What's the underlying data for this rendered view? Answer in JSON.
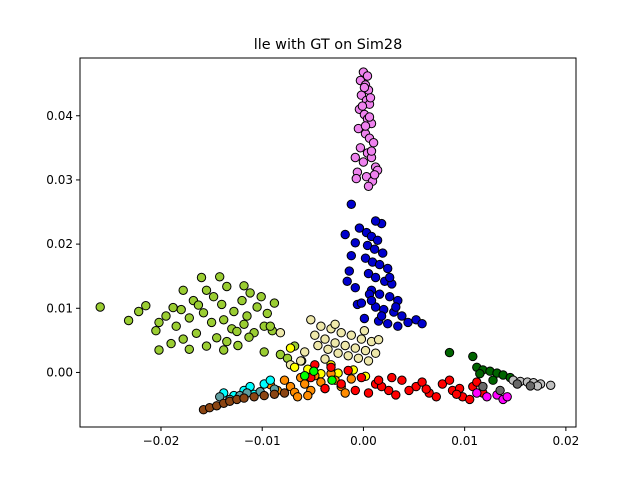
{
  "chart_data": {
    "type": "scatter",
    "title": "lle with GT on Sim28",
    "xlabel": "",
    "ylabel": "",
    "xlim": [
      -0.028,
      0.021
    ],
    "ylim": [
      -0.0085,
      0.049
    ],
    "x_ticks": [
      -0.02,
      -0.01,
      0.0,
      0.01,
      0.02
    ],
    "x_tick_labels": [
      "−0.02",
      "−0.01",
      "0.00",
      "0.01",
      "0.02"
    ],
    "y_ticks": [
      0.0,
      0.01,
      0.02,
      0.03,
      0.04
    ],
    "y_tick_labels": [
      "0.00",
      "0.01",
      "0.02",
      "0.03",
      "0.04"
    ],
    "grid": false,
    "legend": "none",
    "marker_edge_color": "#000000",
    "series": [
      {
        "color": "#9acd32",
        "points": [
          [
            -0.026,
            0.0102
          ],
          [
            -0.0232,
            0.0081
          ],
          [
            -0.0222,
            0.0095
          ],
          [
            -0.0215,
            0.0104
          ],
          [
            -0.0205,
            0.0065
          ],
          [
            -0.0202,
            0.0078
          ],
          [
            -0.0195,
            0.0088
          ],
          [
            -0.0188,
            0.0101
          ],
          [
            -0.0185,
            0.0072
          ],
          [
            -0.018,
            0.0098
          ],
          [
            -0.0178,
            0.0052
          ],
          [
            -0.0172,
            0.0085
          ],
          [
            -0.0168,
            0.0112
          ],
          [
            -0.0165,
            0.0061
          ],
          [
            -0.016,
            0.0148
          ],
          [
            -0.0158,
            0.0093
          ],
          [
            -0.0155,
            0.0128
          ],
          [
            -0.015,
            0.0078
          ],
          [
            -0.0148,
            0.0118
          ],
          [
            -0.0145,
            0.0054
          ],
          [
            -0.014,
            0.0106
          ],
          [
            -0.0138,
            0.0082
          ],
          [
            -0.0135,
            0.0134
          ],
          [
            -0.013,
            0.0068
          ],
          [
            -0.0128,
            0.0095
          ],
          [
            -0.0124,
            0.0042
          ],
          [
            -0.012,
            0.0112
          ],
          [
            -0.0118,
            0.0075
          ],
          [
            -0.0115,
            0.0088
          ],
          [
            -0.0112,
            0.0124
          ],
          [
            -0.0108,
            0.0062
          ],
          [
            -0.0105,
            0.0102
          ],
          [
            -0.0101,
            0.0118
          ],
          [
            -0.0098,
            0.0072
          ],
          [
            -0.0095,
            0.0092
          ],
          [
            -0.009,
            0.0065
          ],
          [
            -0.0088,
            0.0108
          ],
          [
            -0.0172,
            0.0036
          ],
          [
            -0.0155,
            0.0041
          ],
          [
            -0.0138,
            0.0035
          ],
          [
            -0.019,
            0.0045
          ],
          [
            -0.0098,
            0.0032
          ],
          [
            -0.0082,
            0.0028
          ],
          [
            -0.0075,
            0.0022
          ],
          [
            -0.0068,
            0.0041
          ],
          [
            -0.0061,
            0.0018
          ],
          [
            -0.0118,
            0.0135
          ],
          [
            -0.0142,
            0.0149
          ],
          [
            -0.0202,
            0.0035
          ],
          [
            -0.0178,
            0.0128
          ],
          [
            -0.0163,
            0.0105
          ],
          [
            -0.0135,
            0.0048
          ],
          [
            -0.0113,
            0.0055
          ],
          [
            -0.0092,
            0.0072
          ],
          [
            -0.0125,
            0.0064
          ]
        ]
      },
      {
        "color": "#ee82ee",
        "points": [
          [
            0.0,
            0.0468
          ],
          [
            0.0004,
            0.0462
          ],
          [
            -0.0003,
            0.0455
          ],
          [
            0.0002,
            0.0448
          ],
          [
            0.0005,
            0.044
          ],
          [
            -0.0002,
            0.0432
          ],
          [
            0.0003,
            0.0424
          ],
          [
            0.0006,
            0.0418
          ],
          [
            -0.0004,
            0.041
          ],
          [
            0.0001,
            0.0402
          ],
          [
            0.0004,
            0.0395
          ],
          [
            0.0008,
            0.0388
          ],
          [
            -0.0005,
            0.038
          ],
          [
            0.0002,
            0.0372
          ],
          [
            0.0006,
            0.0365
          ],
          [
            0.001,
            0.0358
          ],
          [
            -0.0003,
            0.035
          ],
          [
            0.0004,
            0.0342
          ],
          [
            0.0008,
            0.0335
          ],
          [
            0.0,
            0.0328
          ],
          [
            0.0012,
            0.032
          ],
          [
            -0.0006,
            0.0312
          ],
          [
            0.0003,
            0.0305
          ],
          [
            0.0009,
            0.0298
          ],
          [
            0.0005,
            0.029
          ],
          [
            -0.0007,
            0.0302
          ],
          [
            0.0014,
            0.0315
          ],
          [
            0.0002,
            0.0384
          ],
          [
            0.0006,
            0.0398
          ],
          [
            -0.0001,
            0.0415
          ],
          [
            0.0007,
            0.0428
          ],
          [
            0.0001,
            0.0444
          ],
          [
            0.0008,
            0.0345
          ],
          [
            -0.0008,
            0.0335
          ],
          [
            0.0011,
            0.0308
          ]
        ]
      },
      {
        "color": "#0000cd",
        "points": [
          [
            -0.0012,
            0.0262
          ],
          [
            0.0018,
            0.0232
          ],
          [
            -0.0018,
            0.0215
          ],
          [
            -0.0004,
            0.0225
          ],
          [
            0.0003,
            0.0218
          ],
          [
            0.0008,
            0.0212
          ],
          [
            0.0014,
            0.0206
          ],
          [
            -0.0008,
            0.0202
          ],
          [
            0.0004,
            0.0198
          ],
          [
            0.0011,
            0.0192
          ],
          [
            0.0019,
            0.0186
          ],
          [
            -0.0012,
            0.0182
          ],
          [
            0.0002,
            0.0178
          ],
          [
            0.0009,
            0.0172
          ],
          [
            0.0016,
            0.0168
          ],
          [
            0.0024,
            0.0162
          ],
          [
            -0.0014,
            0.0158
          ],
          [
            0.0005,
            0.0154
          ],
          [
            0.0012,
            0.0148
          ],
          [
            0.0021,
            0.0142
          ],
          [
            0.0028,
            0.0138
          ],
          [
            -0.0008,
            0.0132
          ],
          [
            0.0008,
            0.0128
          ],
          [
            0.0016,
            0.0122
          ],
          [
            0.0026,
            0.0118
          ],
          [
            0.0034,
            0.0112
          ],
          [
            -0.0006,
            0.0106
          ],
          [
            0.0012,
            0.0102
          ],
          [
            0.002,
            0.0098
          ],
          [
            0.003,
            0.0094
          ],
          [
            0.0038,
            0.0088
          ],
          [
            0.0001,
            0.0084
          ],
          [
            0.0015,
            0.008
          ],
          [
            0.0024,
            0.0076
          ],
          [
            0.0034,
            0.0072
          ],
          [
            0.0044,
            0.0078
          ],
          [
            0.0052,
            0.0082
          ],
          [
            0.0058,
            0.0076
          ],
          [
            -0.0002,
            0.0108
          ],
          [
            0.0006,
            0.0122
          ],
          [
            -0.0016,
            0.0142
          ],
          [
            0.0026,
            0.0148
          ],
          [
            0.0008,
            0.0112
          ],
          [
            0.0018,
            0.0088
          ],
          [
            0.0032,
            0.0102
          ],
          [
            0.0012,
            0.0236
          ]
        ]
      },
      {
        "color": "#eee8aa",
        "points": [
          [
            -0.0052,
            0.0082
          ],
          [
            -0.0042,
            0.0072
          ],
          [
            -0.0032,
            0.0068
          ],
          [
            -0.0022,
            0.0062
          ],
          [
            -0.0012,
            0.0058
          ],
          [
            -0.0002,
            0.0052
          ],
          [
            0.0008,
            0.0048
          ],
          [
            -0.0048,
            0.0058
          ],
          [
            -0.0038,
            0.0052
          ],
          [
            -0.0028,
            0.0046
          ],
          [
            -0.0018,
            0.0042
          ],
          [
            -0.0008,
            0.0038
          ],
          [
            0.0002,
            0.0034
          ],
          [
            0.0012,
            0.003
          ],
          [
            -0.0045,
            0.0042
          ],
          [
            -0.0035,
            0.0036
          ],
          [
            -0.0025,
            0.003
          ],
          [
            -0.0015,
            0.0026
          ],
          [
            -0.0005,
            0.0022
          ],
          [
            0.0005,
            0.0018
          ],
          [
            -0.0058,
            0.0032
          ],
          [
            -0.0062,
            0.0018
          ],
          [
            -0.0038,
            0.0021
          ],
          [
            -0.0072,
            0.0012
          ],
          [
            -0.0082,
            0.0062
          ],
          [
            0.0015,
            0.0051
          ],
          [
            -0.0028,
            0.0075
          ],
          [
            0.0001,
            0.0065
          ]
        ]
      },
      {
        "color": "#ffff00",
        "points": [
          [
            -0.0072,
            0.0038
          ],
          [
            -0.0055,
            0.0005
          ],
          [
            -0.0042,
            -0.0002
          ],
          [
            -0.0025,
            -0.0001
          ],
          [
            -0.001,
            0.0004
          ],
          [
            0.0002,
            -0.0006
          ],
          [
            -0.0068,
            0.0008
          ],
          [
            -0.0032,
            0.0012
          ]
        ]
      },
      {
        "color": "#ff8c00",
        "points": [
          [
            -0.0078,
            -0.0012
          ],
          [
            -0.0072,
            -0.0022
          ],
          [
            -0.0068,
            -0.0031
          ],
          [
            -0.0062,
            -0.0008
          ],
          [
            -0.0058,
            -0.0018
          ],
          [
            -0.0052,
            -0.0028
          ],
          [
            -0.0048,
            -0.0005
          ],
          [
            -0.0042,
            -0.0015
          ],
          [
            -0.0038,
            -0.0025
          ],
          [
            -0.0032,
            -0.0002
          ],
          [
            -0.0028,
            -0.0012
          ],
          [
            -0.0022,
            -0.0022
          ],
          [
            -0.0018,
            -0.0032
          ],
          [
            -0.0012,
            -0.001
          ],
          [
            -0.0065,
            -0.0038
          ],
          [
            -0.0085,
            -0.0028
          ],
          [
            -0.0092,
            -0.0019
          ],
          [
            -0.0055,
            -0.0036
          ]
        ]
      },
      {
        "color": "#ff0000",
        "points": [
          [
            -0.0048,
            0.0012
          ],
          [
            -0.0032,
            0.0008
          ],
          [
            -0.0015,
            0.0003
          ],
          [
            -0.0002,
            -0.0008
          ],
          [
            0.0012,
            -0.0018
          ],
          [
            0.0025,
            -0.0028
          ],
          [
            0.0038,
            -0.0012
          ],
          [
            0.0052,
            -0.0022
          ],
          [
            0.0065,
            -0.0032
          ],
          [
            0.0078,
            -0.0018
          ],
          [
            0.0088,
            -0.0028
          ],
          [
            0.0098,
            -0.0038
          ],
          [
            0.0108,
            -0.0022
          ],
          [
            0.0118,
            -0.0032
          ],
          [
            -0.0022,
            -0.0018
          ],
          [
            -0.0008,
            -0.0028
          ],
          [
            0.0005,
            -0.0032
          ],
          [
            0.0018,
            -0.0022
          ],
          [
            0.0032,
            -0.0035
          ],
          [
            0.0045,
            -0.0028
          ],
          [
            0.0058,
            -0.0015
          ],
          [
            0.0072,
            -0.0038
          ],
          [
            0.0085,
            -0.0012
          ],
          [
            0.0095,
            -0.0025
          ],
          [
            0.0105,
            -0.0042
          ],
          [
            0.0112,
            -0.0015
          ],
          [
            -0.0038,
            -0.0025
          ],
          [
            -0.0052,
            -0.0008
          ],
          [
            0.0028,
            -0.0008
          ],
          [
            0.0062,
            -0.0026
          ],
          [
            0.0092,
            -0.0034
          ],
          [
            0.0015,
            -0.0012
          ]
        ]
      },
      {
        "color": "#00ff00",
        "points": [
          [
            -0.0058,
            -0.0005
          ],
          [
            -0.0049,
            0.0002
          ],
          [
            -0.0031,
            -0.0012
          ]
        ]
      },
      {
        "color": "#00ffff",
        "points": [
          [
            -0.0138,
            -0.0032
          ],
          [
            -0.0128,
            -0.0036
          ],
          [
            -0.0118,
            -0.0028
          ],
          [
            -0.0108,
            -0.0034
          ],
          [
            -0.0098,
            -0.0018
          ],
          [
            -0.0092,
            -0.0012
          ],
          [
            -0.0112,
            -0.0022
          ]
        ]
      },
      {
        "color": "#5f9ea0",
        "points": [
          [
            -0.0142,
            -0.0038
          ],
          [
            -0.0132,
            -0.0042
          ],
          [
            -0.0122,
            -0.0036
          ],
          [
            -0.0115,
            -0.0032
          ],
          [
            -0.0102,
            -0.003
          ],
          [
            -0.0088,
            -0.0026
          ]
        ]
      },
      {
        "color": "#8b4513",
        "points": [
          [
            -0.0158,
            -0.0058
          ],
          [
            -0.0152,
            -0.0055
          ],
          [
            -0.0145,
            -0.0052
          ],
          [
            -0.0138,
            -0.0048
          ],
          [
            -0.0132,
            -0.0045
          ],
          [
            -0.0125,
            -0.0042
          ],
          [
            -0.0118,
            -0.004
          ],
          [
            -0.0108,
            -0.0038
          ],
          [
            -0.0098,
            -0.0036
          ],
          [
            -0.0088,
            -0.0034
          ],
          [
            -0.0078,
            -0.0032
          ]
        ]
      },
      {
        "color": "#ff00ff",
        "points": [
          [
            0.0112,
            -0.0032
          ],
          [
            0.0122,
            -0.0038
          ],
          [
            0.0132,
            -0.0035
          ],
          [
            0.0138,
            -0.0042
          ],
          [
            0.0142,
            -0.0038
          ]
        ]
      },
      {
        "color": "#006400",
        "points": [
          [
            0.0085,
            0.0031
          ],
          [
            0.0108,
            0.0025
          ],
          [
            0.0112,
            0.0008
          ],
          [
            0.0118,
            0.0004
          ],
          [
            0.0125,
            0.0002
          ],
          [
            0.0132,
            -0.0001
          ],
          [
            0.0138,
            -0.0004
          ],
          [
            0.0145,
            -0.0008
          ],
          [
            0.0128,
            -0.0012
          ],
          [
            0.0115,
            -0.0002
          ]
        ]
      },
      {
        "color": "#c0c0c0",
        "points": [
          [
            0.0148,
            -0.0012
          ],
          [
            0.0155,
            -0.0014
          ],
          [
            0.0162,
            -0.0015
          ],
          [
            0.0168,
            -0.0016
          ],
          [
            0.0175,
            -0.0018
          ],
          [
            0.0185,
            -0.002
          ],
          [
            0.0172,
            -0.0021
          ]
        ]
      },
      {
        "color": "#696969",
        "points": [
          [
            0.0118,
            -0.0022
          ],
          [
            0.0135,
            -0.0028
          ],
          [
            0.0152,
            -0.0018
          ],
          [
            0.0165,
            -0.0021
          ]
        ]
      }
    ]
  }
}
